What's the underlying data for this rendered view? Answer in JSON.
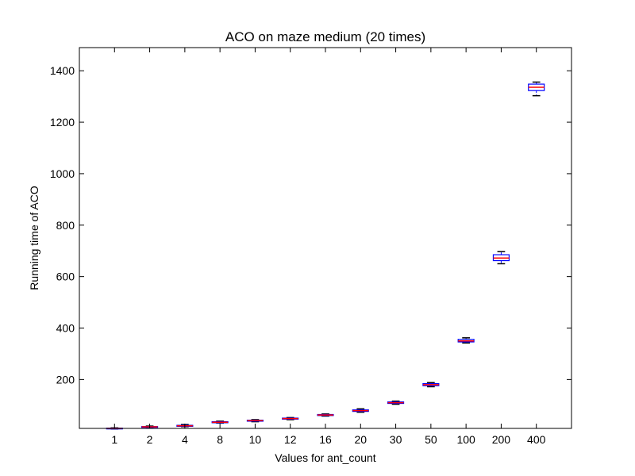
{
  "chart_data": {
    "type": "box",
    "title": "ACO on maze medium (20 times)",
    "xlabel": "Values for ant_count",
    "ylabel": "Running time of ACO",
    "ylim": [
      10,
      1490
    ],
    "yticks": [
      200,
      400,
      600,
      800,
      1000,
      1200,
      1400
    ],
    "grid": false,
    "legend": "none",
    "categories": [
      "1",
      "2",
      "4",
      "8",
      "10",
      "12",
      "16",
      "20",
      "30",
      "50",
      "100",
      "200",
      "400"
    ],
    "boxes": [
      {
        "whislo": 8,
        "q1": 9,
        "med": 10,
        "q3": 11,
        "whishi": 12
      },
      {
        "whislo": 14,
        "q1": 15,
        "med": 16,
        "q3": 17,
        "whishi": 19
      },
      {
        "whislo": 17,
        "q1": 18,
        "med": 20,
        "q3": 22,
        "whishi": 25
      },
      {
        "whislo": 31,
        "q1": 32,
        "med": 34,
        "q3": 36,
        "whishi": 38
      },
      {
        "whislo": 36,
        "q1": 38,
        "med": 40,
        "q3": 42,
        "whishi": 44
      },
      {
        "whislo": 44,
        "q1": 46,
        "med": 48,
        "q3": 50,
        "whishi": 52
      },
      {
        "whislo": 58,
        "q1": 60,
        "med": 62,
        "q3": 64,
        "whishi": 66
      },
      {
        "whislo": 73,
        "q1": 76,
        "med": 79,
        "q3": 82,
        "whishi": 86
      },
      {
        "whislo": 104,
        "q1": 107,
        "med": 110,
        "q3": 113,
        "whishi": 116
      },
      {
        "whislo": 172,
        "q1": 176,
        "med": 180,
        "q3": 184,
        "whishi": 188
      },
      {
        "whislo": 342,
        "q1": 346,
        "med": 350,
        "q3": 356,
        "whishi": 362
      },
      {
        "whislo": 650,
        "q1": 662,
        "med": 672,
        "q3": 685,
        "whishi": 697
      },
      {
        "whislo": 1303,
        "q1": 1323,
        "med": 1336,
        "q3": 1348,
        "whishi": 1356
      }
    ],
    "colors": {
      "box": "#0000ff",
      "median": "#ff0000",
      "whisker": "#000000",
      "frame": "#000000"
    }
  }
}
